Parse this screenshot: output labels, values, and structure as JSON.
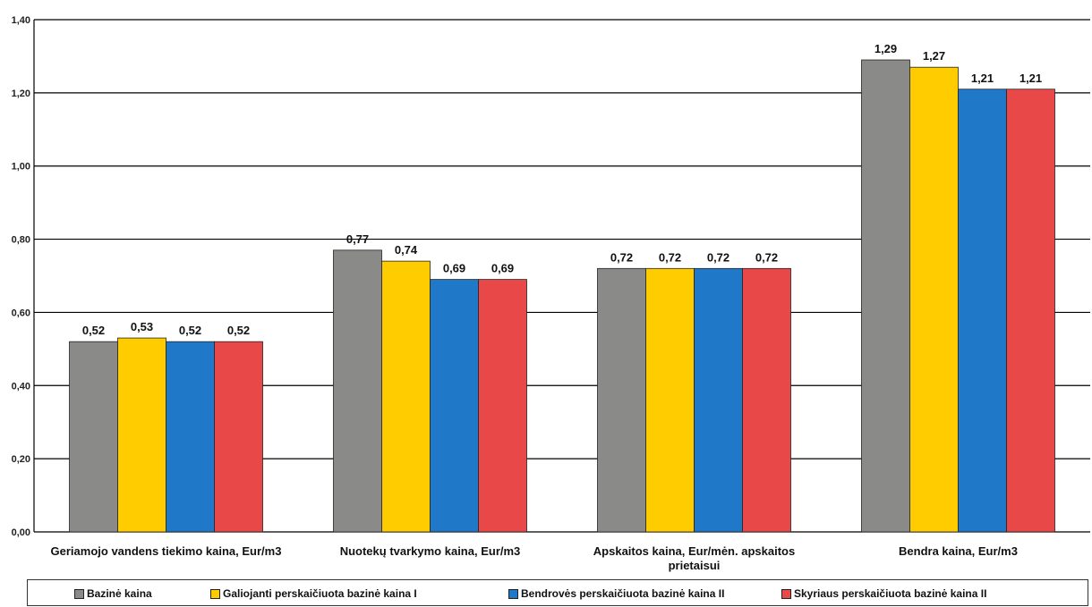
{
  "chart_data": {
    "type": "bar",
    "categories": [
      "Geriamojo vandens tiekimo kaina, Eur/m3",
      "Nuotekų tvarkymo kaina, Eur/m3",
      "Apskaitos kaina, Eur/mėn. apskaitos prietaisui",
      "Bendra kaina, Eur/m3"
    ],
    "series": [
      {
        "name": "Bazinė kaina",
        "color": "#8a8a88",
        "values": [
          0.52,
          0.77,
          0.72,
          1.29
        ],
        "labels": [
          "0,52",
          "0,77",
          "0,72",
          "1,29"
        ]
      },
      {
        "name": "Galiojanti perskaičiuota bazinė kaina I",
        "color": "#ffcc00",
        "values": [
          0.53,
          0.74,
          0.72,
          1.27
        ],
        "labels": [
          "0,53",
          "0,74",
          "0,72",
          "1,27"
        ]
      },
      {
        "name": "Bendrovės perskaičiuota bazinė kaina II",
        "color": "#1f78c8",
        "values": [
          0.52,
          0.69,
          0.72,
          1.21
        ],
        "labels": [
          "0,52",
          "0,69",
          "0,72",
          "1,21"
        ]
      },
      {
        "name": "Skyriaus perskaičiuota bazinė kaina II",
        "color": "#e84848",
        "values": [
          0.52,
          0.69,
          0.72,
          1.21
        ],
        "labels": [
          "0,52",
          "0,69",
          "0,72",
          "1,21"
        ]
      }
    ],
    "ylim": [
      0,
      1.4
    ],
    "yticks": [
      "0,00",
      "0,20",
      "0,40",
      "0,60",
      "0,80",
      "1,00",
      "1,20",
      "1,40"
    ],
    "grid": true,
    "legend_position": "bottom",
    "title": "",
    "xlabel": "",
    "ylabel": ""
  },
  "legend": {
    "items": [
      "Bazinė kaina",
      "Galiojanti perskaičiuota bazinė kaina I",
      "Bendrovės perskaičiuota bazinė kaina II",
      "Skyriaus perskaičiuota bazinė kaina II"
    ]
  }
}
